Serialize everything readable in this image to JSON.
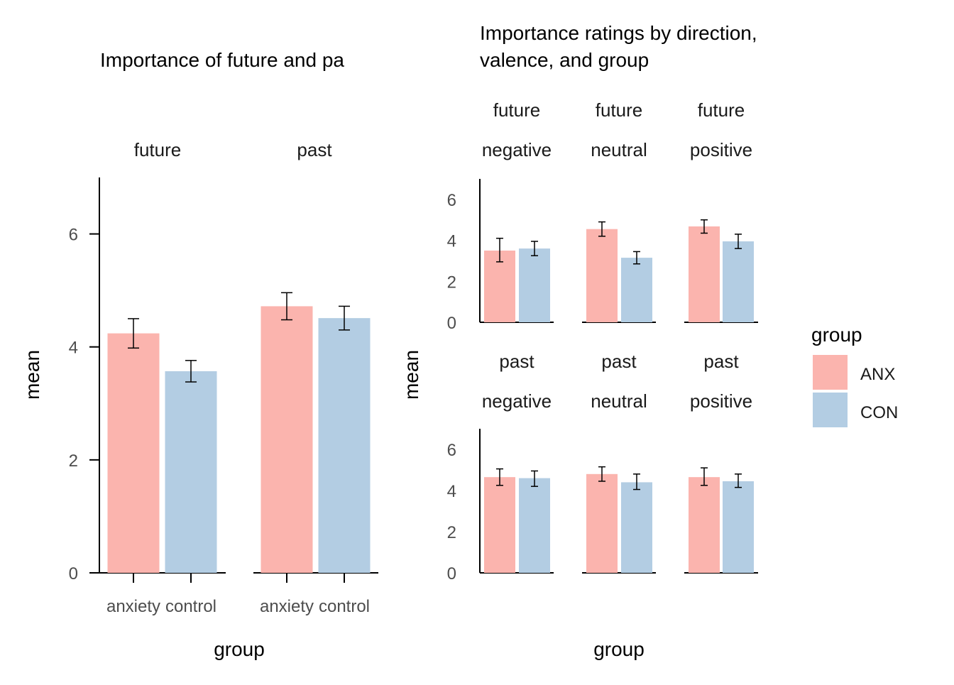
{
  "colors": {
    "ANX": "#FBB4AE",
    "CON": "#B3CDE3",
    "axis": "#000000",
    "tick": "#4d4d4d"
  },
  "chart_data": [
    {
      "type": "bar",
      "title": "Importance of future and pa",
      "xlabel": "group",
      "ylabel": "mean",
      "ylim": [
        0,
        7
      ],
      "yticks": [
        0,
        2,
        4,
        6
      ],
      "grid": false,
      "panels": [
        {
          "strip": [
            "future"
          ],
          "bars": [
            {
              "category": "anxiety",
              "fill_group": "ANX",
              "value": 4.24,
              "se_low": 3.98,
              "se_high": 4.5
            },
            {
              "category": "control",
              "fill_group": "CON",
              "value": 3.57,
              "se_low": 3.38,
              "se_high": 3.76
            }
          ]
        },
        {
          "strip": [
            "past"
          ],
          "bars": [
            {
              "category": "anxiety",
              "fill_group": "ANX",
              "value": 4.72,
              "se_low": 4.48,
              "se_high": 4.96
            },
            {
              "category": "control",
              "fill_group": "CON",
              "value": 4.51,
              "se_low": 4.3,
              "se_high": 4.72
            }
          ]
        }
      ]
    },
    {
      "type": "bar",
      "title": [
        "Importance ratings by direction,",
        "valence, and group"
      ],
      "xlabel": "group",
      "ylabel": "mean",
      "ylim": [
        0,
        7
      ],
      "yticks": [
        0,
        2,
        4,
        6
      ],
      "grid": false,
      "legend": {
        "title": "group",
        "position": "right",
        "entries": [
          {
            "label": "ANX",
            "group": "ANX"
          },
          {
            "label": "CON",
            "group": "CON"
          }
        ]
      },
      "panels": [
        {
          "strip": [
            "future",
            "negative"
          ],
          "bars": [
            {
              "fill_group": "ANX",
              "value": 3.5,
              "se_low": 2.95,
              "se_high": 4.1
            },
            {
              "fill_group": "CON",
              "value": 3.6,
              "se_low": 3.25,
              "se_high": 3.95
            }
          ]
        },
        {
          "strip": [
            "future",
            "neutral"
          ],
          "bars": [
            {
              "fill_group": "ANX",
              "value": 4.55,
              "se_low": 4.2,
              "se_high": 4.9
            },
            {
              "fill_group": "CON",
              "value": 3.15,
              "se_low": 2.85,
              "se_high": 3.45
            }
          ]
        },
        {
          "strip": [
            "future",
            "positive"
          ],
          "bars": [
            {
              "fill_group": "ANX",
              "value": 4.68,
              "se_low": 4.35,
              "se_high": 5.0
            },
            {
              "fill_group": "CON",
              "value": 3.95,
              "se_low": 3.6,
              "se_high": 4.3
            }
          ]
        },
        {
          "strip": [
            "past",
            "negative"
          ],
          "bars": [
            {
              "fill_group": "ANX",
              "value": 4.65,
              "se_low": 4.25,
              "se_high": 5.05
            },
            {
              "fill_group": "CON",
              "value": 4.6,
              "se_low": 4.2,
              "se_high": 4.95
            }
          ]
        },
        {
          "strip": [
            "past",
            "neutral"
          ],
          "bars": [
            {
              "fill_group": "ANX",
              "value": 4.8,
              "se_low": 4.45,
              "se_high": 5.15
            },
            {
              "fill_group": "CON",
              "value": 4.4,
              "se_low": 4.05,
              "se_high": 4.8
            }
          ]
        },
        {
          "strip": [
            "past",
            "positive"
          ],
          "bars": [
            {
              "fill_group": "ANX",
              "value": 4.65,
              "se_low": 4.25,
              "se_high": 5.1
            },
            {
              "fill_group": "CON",
              "value": 4.45,
              "se_low": 4.15,
              "se_high": 4.8
            }
          ]
        }
      ]
    }
  ]
}
